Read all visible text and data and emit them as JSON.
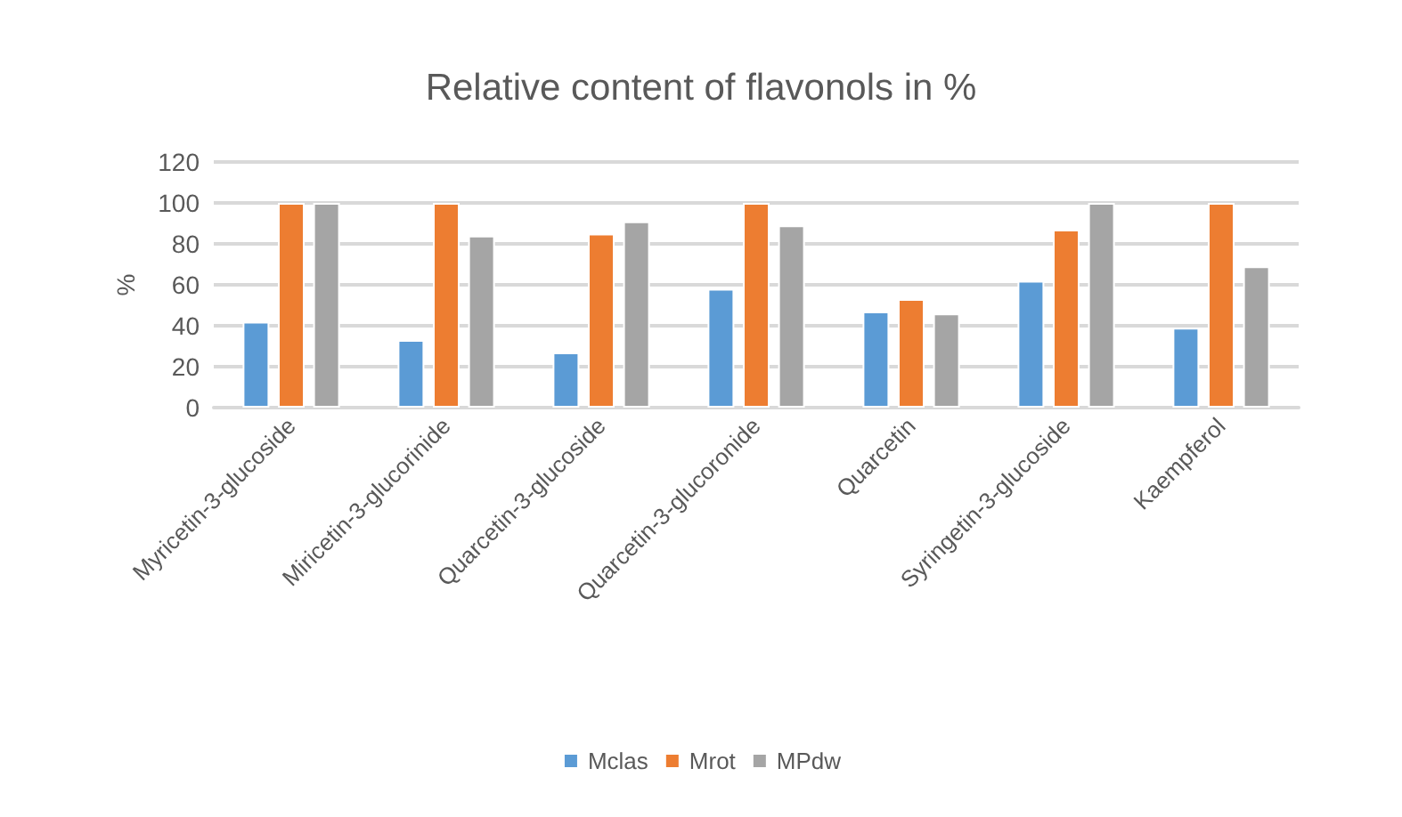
{
  "chart_data": {
    "type": "bar",
    "title": "Relative content of flavonols in %",
    "ylabel": "%",
    "categories": [
      "Myricetin-3-glucoside",
      "Miricetin-3-glucorinide",
      "Quarcetin-3-glucoside",
      "Quarcetin-3-glucoronide",
      "Quarcetin",
      "Syringetin-3-glucoside",
      "Kaempferol"
    ],
    "series": [
      {
        "name": "Mclas",
        "color": "#5b9bd5",
        "values": [
          42,
          33,
          27,
          58,
          47,
          62,
          39
        ]
      },
      {
        "name": "Mrot",
        "color": "#ed7d31",
        "values": [
          100,
          100,
          85,
          100,
          53,
          87,
          100
        ]
      },
      {
        "name": "MPdw",
        "color": "#a5a5a5",
        "values": [
          100,
          84,
          91,
          89,
          46,
          100,
          69
        ]
      }
    ],
    "ylim": [
      0,
      120
    ],
    "yticks": [
      0,
      20,
      40,
      60,
      80,
      100,
      120
    ],
    "grid": "y",
    "legend": "bottom"
  }
}
